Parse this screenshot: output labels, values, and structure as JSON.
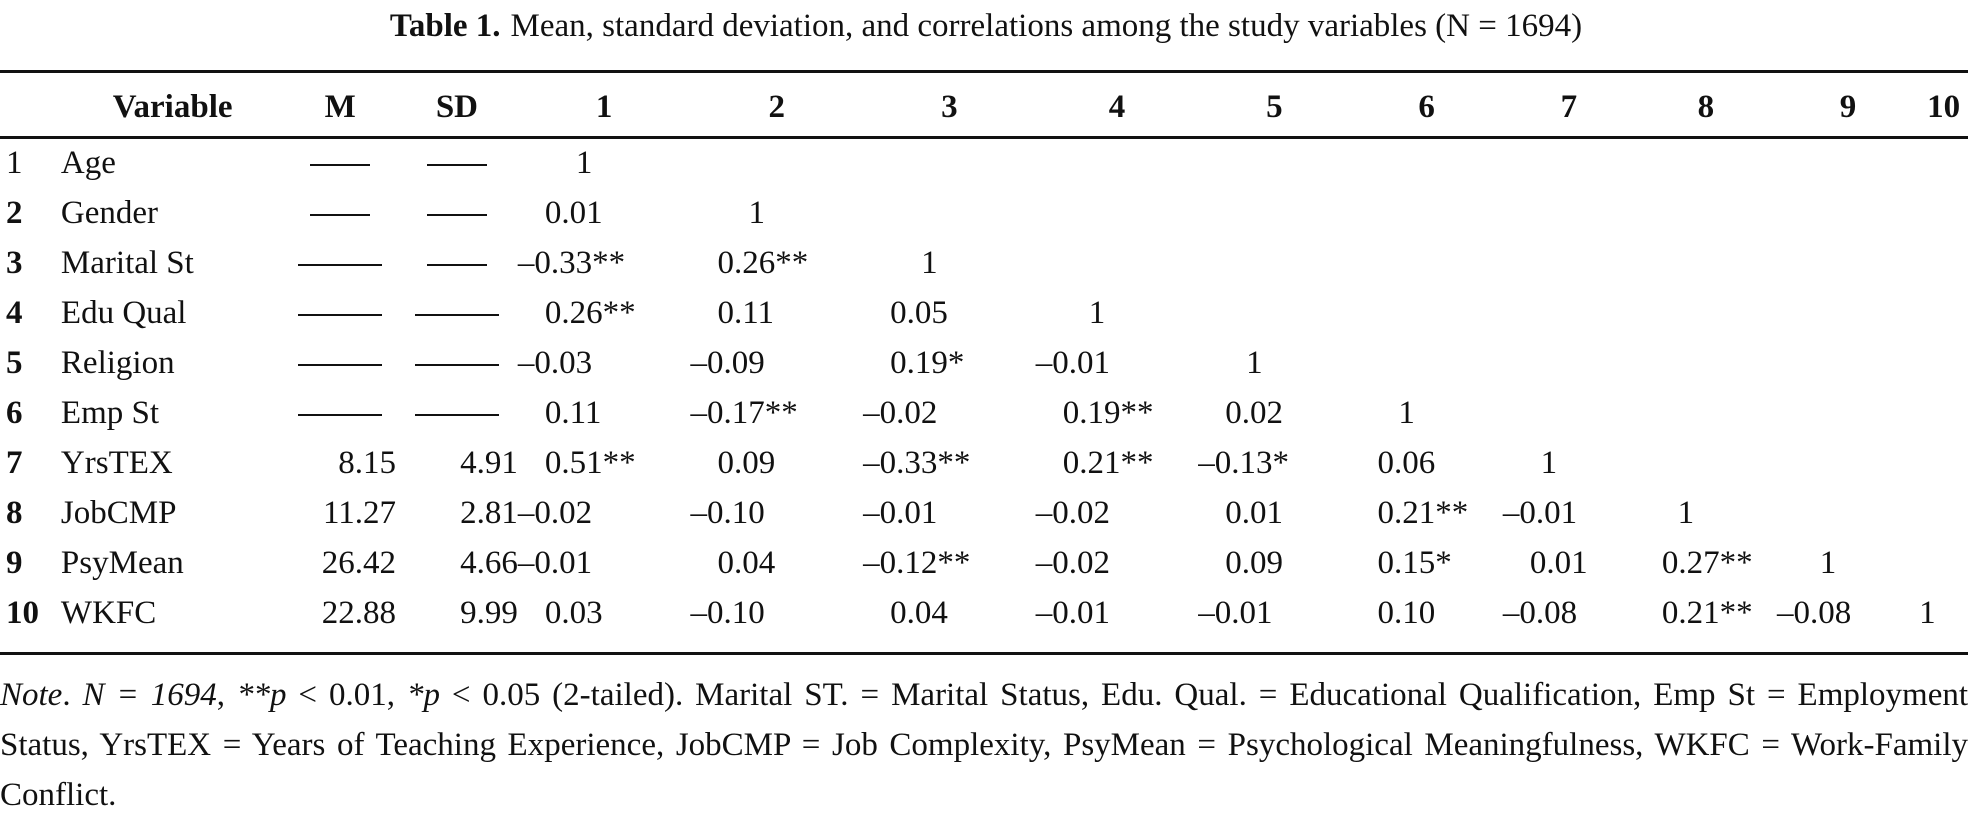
{
  "caption": {
    "label": "Table 1.",
    "text": "Mean, standard deviation, and correlations among the study variables (N = 1694)"
  },
  "table": {
    "headers": [
      "",
      "Variable",
      "M",
      "SD",
      "1",
      "2",
      "3",
      "4",
      "5",
      "6",
      "7",
      "8",
      "9",
      "10"
    ],
    "rows": [
      {
        "num": "1",
        "var": "Age",
        "m": "——",
        "sd": "——",
        "r": [
          "1",
          "",
          "",
          "",
          "",
          "",
          "",
          "",
          "",
          ""
        ]
      },
      {
        "num": "2",
        "var": "Gender",
        "m": "——",
        "sd": "——",
        "r": [
          "0.01",
          "1",
          "",
          "",
          "",
          "",
          "",
          "",
          "",
          ""
        ]
      },
      {
        "num": "3",
        "var": "Marital St",
        "m": "———",
        "sd": "——",
        "r": [
          "–0.33**",
          "0.26**",
          "1",
          "",
          "",
          "",
          "",
          "",
          "",
          ""
        ]
      },
      {
        "num": "4",
        "var": "Edu Qual",
        "m": "———",
        "sd": "———",
        "r": [
          "0.26**",
          "0.11",
          "0.05",
          "1",
          "",
          "",
          "",
          "",
          "",
          ""
        ]
      },
      {
        "num": "5",
        "var": "Religion",
        "m": "———",
        "sd": "———",
        "r": [
          "–0.03",
          "–0.09",
          "0.19*",
          "–0.01",
          "1",
          "",
          "",
          "",
          "",
          ""
        ]
      },
      {
        "num": "6",
        "var": "Emp St",
        "m": "———",
        "sd": "———",
        "r": [
          "0.11",
          "–0.17**",
          "–0.02",
          "0.19**",
          "0.02",
          "1",
          "",
          "",
          "",
          ""
        ]
      },
      {
        "num": "7",
        "var": "YrsTEX",
        "m": "8.15",
        "sd": "4.91",
        "r": [
          "0.51**",
          "0.09",
          "–0.33**",
          "0.21**",
          "–0.13*",
          "0.06",
          "1",
          "",
          "",
          ""
        ]
      },
      {
        "num": "8",
        "var": "JobCMP",
        "m": "11.27",
        "sd": "2.81",
        "r": [
          "–0.02",
          "–0.10",
          "–0.01",
          "–0.02",
          "0.01",
          "0.21**",
          "–0.01",
          "1",
          "",
          ""
        ]
      },
      {
        "num": "9",
        "var": "PsyMean",
        "m": "26.42",
        "sd": "4.66",
        "r": [
          "–0.01",
          "0.04",
          "–0.12**",
          "–0.02",
          "0.09",
          "0.15*",
          "0.01",
          "0.27**",
          "1",
          ""
        ]
      },
      {
        "num": "10",
        "var": "WKFC",
        "m": "22.88",
        "sd": "9.99",
        "r": [
          "0.03",
          "–0.10",
          "0.04",
          "–0.01",
          "–0.01",
          "0.10",
          "–0.08",
          "0.21**",
          "–0.08",
          "1"
        ]
      }
    ]
  },
  "note": {
    "label": "Note",
    "n_part": "N = 1694",
    "sig_part_1": "**p",
    "sig_part_1b": " < 0.01, ",
    "sig_part_2": "*p",
    "sig_part_2b": " < 0.05 (2-tailed). Marital ST. = Marital Status, Edu. Qual. = Educational Qualification, Emp St = Employment Status, YrsTEX = Years of Teaching Experience, JobCMP = Job Complexity, PsyMean = Psychological Meaningfulness, WKFC = Work-Family Conflict."
  }
}
